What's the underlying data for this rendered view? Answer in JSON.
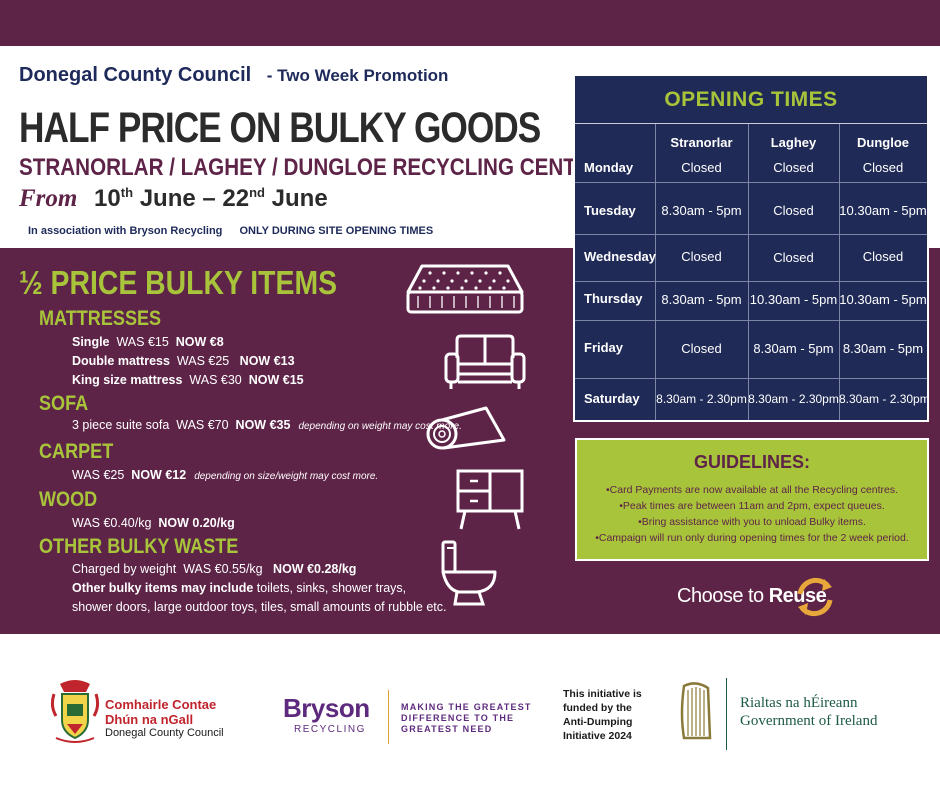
{
  "header": {
    "council": "Donegal County Council",
    "promotion": "- Two Week Promotion",
    "title": "HALF PRICE ON BULKY GOODS",
    "centres": "STRANORLAR / LAGHEY / DUNGLOE RECYCLING CENTRES",
    "from_label": "From",
    "date_start_day": "10",
    "date_start_suffix": "th",
    "date_start_month": "June",
    "date_sep": "–",
    "date_end_day": "22",
    "date_end_suffix": "nd",
    "date_end_month": "June",
    "association": "In association with Bryson Recycling",
    "only_during": "ONLY DURING SITE OPENING TIMES"
  },
  "prices": {
    "title": "½ PRICE BULKY ITEMS",
    "mattresses": {
      "heading": "MATTRESSES",
      "single_name": "Single",
      "single_was": "WAS €15",
      "single_now": "NOW €8",
      "double_name": "Double mattress",
      "double_was": "WAS €25",
      "double_now": "NOW  €13",
      "king_name": "King size mattress",
      "king_was": "WAS €30",
      "king_now": "NOW €15"
    },
    "sofa": {
      "heading": "SOFA",
      "item": "3 piece suite sofa",
      "was": "WAS €70",
      "now": "NOW €35",
      "note": "depending on weight may cost more."
    },
    "carpet": {
      "heading": "CARPET",
      "was": "WAS €25",
      "now": "NOW €12",
      "note": "depending on size/weight may cost more."
    },
    "wood": {
      "heading": "WOOD",
      "was": "WAS €0.40/kg",
      "now": "NOW 0.20/kg"
    },
    "other": {
      "heading": "OTHER BULKY WASTE",
      "charged": "Charged by weight",
      "was": "WAS €0.55/kg",
      "now": "NOW €0.28/kg",
      "include_label": "Other bulky items may include",
      "include_items_1": "toilets, sinks, shower trays,",
      "include_items_2": "shower doors, large outdoor toys, tiles, small amounts of rubble etc."
    }
  },
  "opening_times": {
    "title": "OPENING TIMES",
    "columns": [
      "Stranorlar",
      "Laghey",
      "Dungloe"
    ],
    "rows": [
      {
        "day": "Monday",
        "times": [
          "Closed",
          "Closed",
          "Closed"
        ]
      },
      {
        "day": "Tuesday",
        "times": [
          "8.30am - 5pm",
          "Closed",
          "10.30am - 5pm"
        ]
      },
      {
        "day": "Wednesday",
        "times": [
          "Closed",
          "Closed",
          "Closed"
        ]
      },
      {
        "day": "Thursday",
        "times": [
          "8.30am - 5pm",
          "10.30am - 5pm",
          "10.30am - 5pm"
        ]
      },
      {
        "day": "Friday",
        "times": [
          "Closed",
          "8.30am - 5pm",
          "8.30am - 5pm"
        ]
      },
      {
        "day": "Saturday",
        "times": [
          "8.30am - 2.30pm",
          "8.30am - 2.30pm",
          "8.30am - 2.30pm"
        ]
      }
    ]
  },
  "guidelines": {
    "title": "GUIDELINES:",
    "lines": [
      "•Card Payments are now available at all the Recycling centres.",
      "•Peak times are between 11am and 2pm, expect queues.",
      "•Bring assistance with you to unload Bulky items.",
      "•Campaign will run only during opening times for the 2 week period."
    ]
  },
  "reuse": {
    "choose_to": "Choose to",
    "reuse": "Reuse"
  },
  "footer": {
    "donegal_irish_1": "Comhairle Contae",
    "donegal_irish_2": "Dhún na nGall",
    "donegal_english": "Donegal County Council",
    "bryson_name": "Bryson",
    "bryson_sub": "RECYCLING",
    "bryson_tag_1": "MAKING THE GREATEST",
    "bryson_tag_2": "DIFFERENCE TO THE",
    "bryson_tag_3": "GREATEST NEED",
    "initiative_1": "This initiative is",
    "initiative_2": "funded by the",
    "initiative_3": "Anti-Dumping",
    "initiative_4": "Initiative 2024",
    "gov_irish": "Rialtas na hÉireann",
    "gov_english": "Government of Ireland"
  },
  "colors": {
    "purple": "#5e2448",
    "navy": "#1f2a57",
    "lime": "#a8c43a"
  }
}
